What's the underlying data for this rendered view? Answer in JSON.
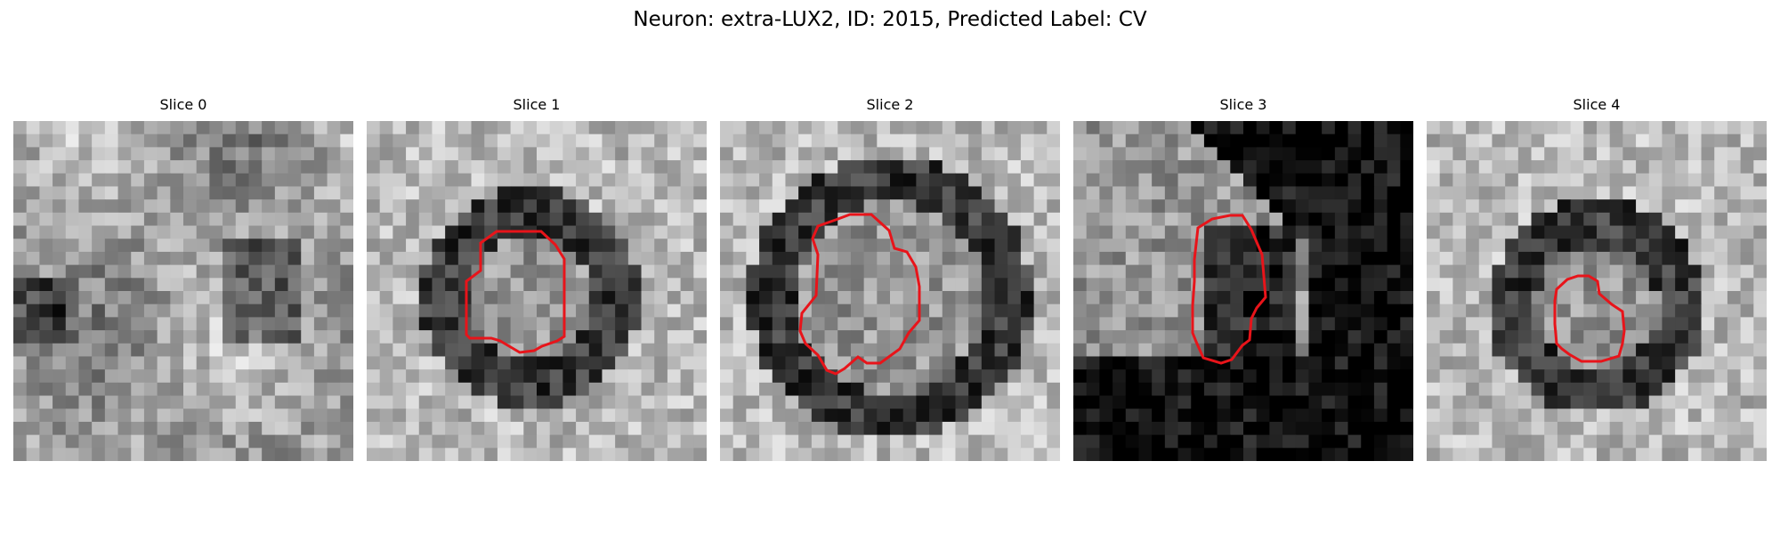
{
  "figure": {
    "title": "Neuron: extra-LUX2, ID: 2015, Predicted Label: CV"
  },
  "slices": [
    {
      "title": "Slice 0",
      "has_contour": false,
      "style": "textured-mid",
      "grid_size": 26
    },
    {
      "title": "Slice 1",
      "has_contour": true,
      "style": "ring-small",
      "grid_size": 26
    },
    {
      "title": "Slice 2",
      "has_contour": true,
      "style": "ring-large",
      "grid_size": 26
    },
    {
      "title": "Slice 3",
      "has_contour": true,
      "style": "dark-corner",
      "grid_size": 26
    },
    {
      "title": "Slice 4",
      "has_contour": true,
      "style": "ring-offset",
      "grid_size": 26
    }
  ],
  "colors": {
    "contour": "#e8141a",
    "background": "#ffffff"
  }
}
